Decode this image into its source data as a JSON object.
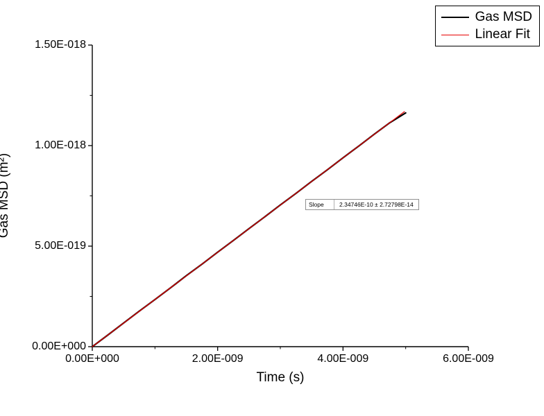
{
  "chart_data": {
    "type": "line",
    "title": "",
    "xlabel": "Time (s)",
    "ylabel": "Gas MSD (m²)",
    "xlim": [
      0,
      6e-09
    ],
    "ylim": [
      0,
      1.5e-18
    ],
    "grid": false,
    "legend_position": "top-right",
    "x_ticks": [
      {
        "v": 0,
        "label": "0.00E+000"
      },
      {
        "v": 2e-09,
        "label": "2.00E-009"
      },
      {
        "v": 4e-09,
        "label": "4.00E-009"
      },
      {
        "v": 6e-09,
        "label": "6.00E-009"
      }
    ],
    "y_ticks": [
      {
        "v": 0,
        "label": "0.00E+000"
      },
      {
        "v": 5e-19,
        "label": "5.00E-019"
      },
      {
        "v": 1e-18,
        "label": "1.00E-018"
      },
      {
        "v": 1.5e-18,
        "label": "1.50E-018"
      }
    ],
    "x_minor_ticks": [
      1e-09,
      3e-09,
      5e-09
    ],
    "y_minor_ticks": [
      2.5e-19,
      7.5e-19,
      1.25e-18
    ],
    "series": [
      {
        "name": "Gas MSD",
        "color": "#000000",
        "width": 2.2,
        "x": [
          0,
          2.5e-10,
          5e-10,
          7.5e-10,
          1e-09,
          1.25e-09,
          1.5e-09,
          1.75e-09,
          2e-09,
          2.25e-09,
          2.5e-09,
          2.75e-09,
          3e-09,
          3.25e-09,
          3.5e-09,
          3.75e-09,
          4e-09,
          4.25e-09,
          4.5e-09,
          4.75e-09,
          5e-09
        ],
        "y": [
          0,
          5.839e-20,
          1.1757e-19,
          1.7656e-19,
          2.3455e-19,
          2.9293e-19,
          3.5292e-19,
          4.1041e-19,
          4.6979e-19,
          5.2788e-19,
          5.8707e-19,
          6.4535e-19,
          7.0464e-19,
          7.6262e-19,
          8.2181e-19,
          8.799e-19,
          9.3928e-19,
          9.9747e-19,
          1.05676e-18,
          1.11454e-18,
          1.16253e-18
        ]
      },
      {
        "name": "Linear Fit",
        "color": "#e60000",
        "width": 1.2,
        "x": [
          0,
          4.98e-09
        ],
        "y": [
          0,
          1.169e-18
        ]
      }
    ],
    "annotation": {
      "label": "Slope",
      "value": "2.34746E-10 ± 2.72798E-14"
    }
  },
  "colors": {
    "axis": "#000000",
    "background": "#ffffff",
    "gas_msd_line": "#000000",
    "linear_fit_line": "#e60000"
  }
}
